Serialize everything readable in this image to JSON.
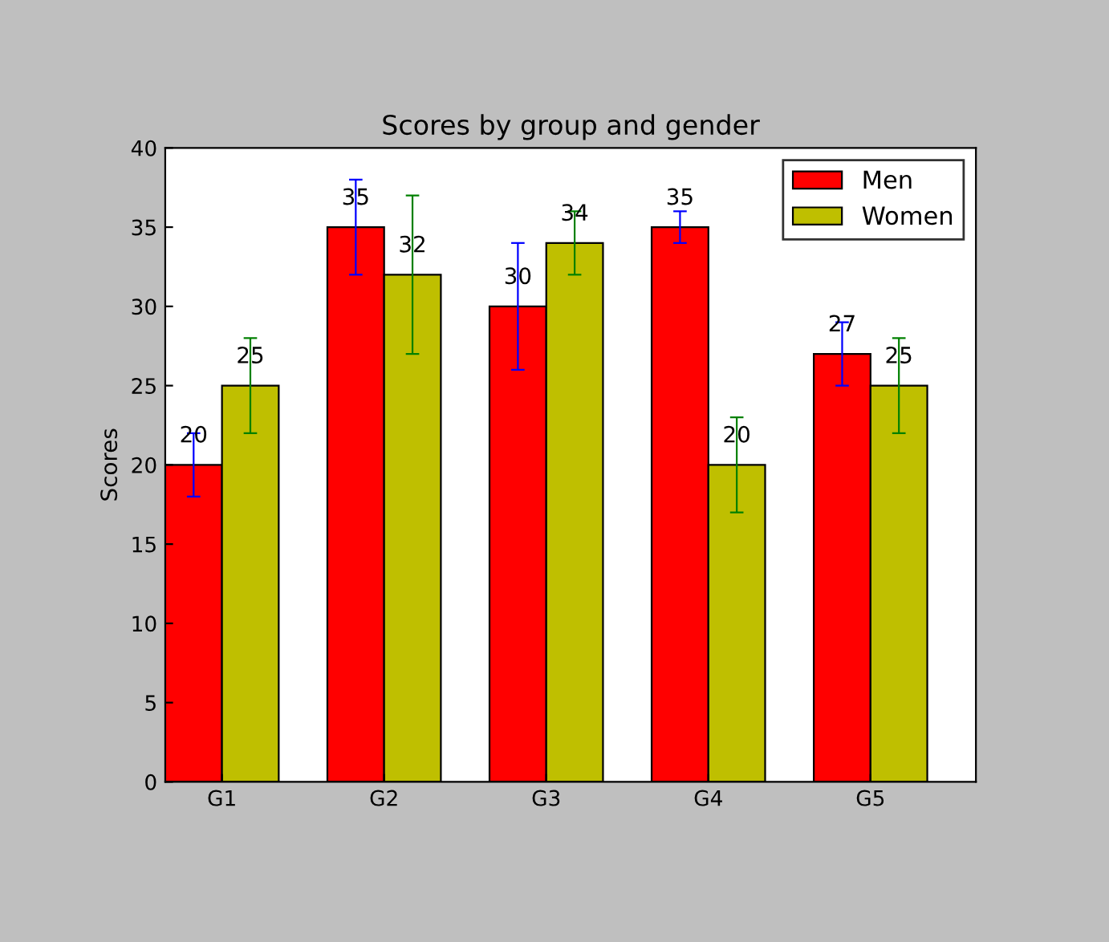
{
  "chart_data": {
    "type": "bar",
    "title": "Scores by group and gender",
    "ylabel": "Scores",
    "categories": [
      "G1",
      "G2",
      "G3",
      "G4",
      "G5"
    ],
    "series": [
      {
        "name": "Men",
        "color": "#ff0000",
        "values": [
          20,
          35,
          30,
          35,
          27
        ],
        "errors": [
          2,
          3,
          4,
          1,
          2
        ]
      },
      {
        "name": "Women",
        "color": "#bfbf00",
        "values": [
          25,
          32,
          34,
          20,
          25
        ],
        "errors": [
          3,
          5,
          2,
          3,
          3
        ]
      }
    ],
    "ylim": [
      0,
      40
    ],
    "yticks": [
      0,
      5,
      10,
      15,
      20,
      25,
      30,
      35,
      40
    ],
    "data_labels": true,
    "legend": "top right",
    "grid": false
  }
}
